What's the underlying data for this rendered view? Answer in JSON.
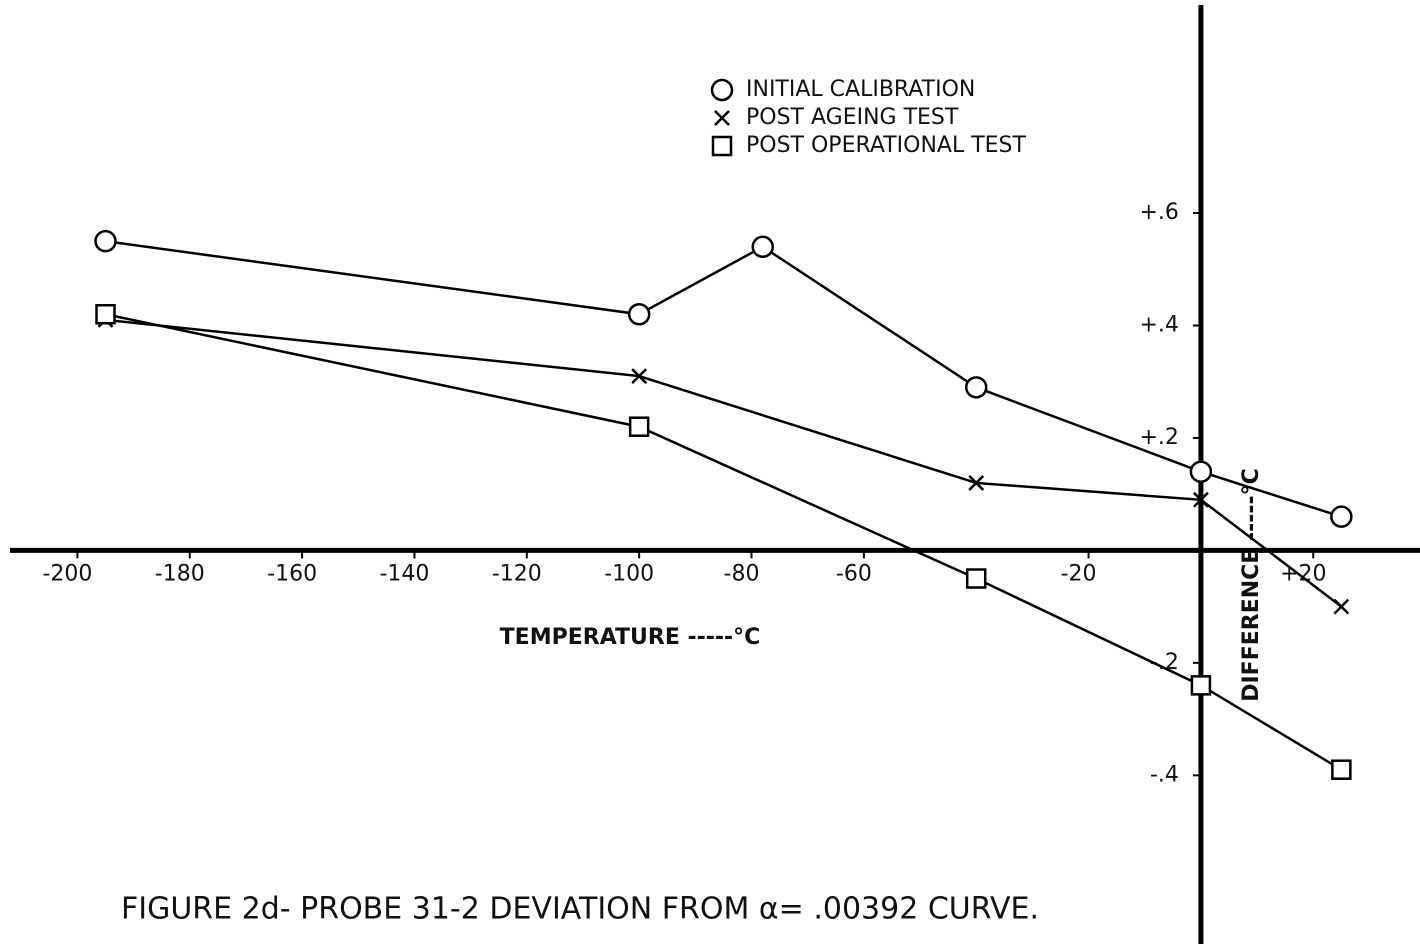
{
  "chart_data": {
    "type": "line",
    "title": "FIGURE 2d- PROBE 31-2 DEVIATION FROM  α= .00392 CURVE.",
    "x_label": "TEMPERATURE -----°C",
    "y_label": "DIFFERENCE -----°C",
    "xlim": [
      -212,
      39
    ],
    "ylim": [
      -0.7,
      0.97
    ],
    "xticks": [
      -200,
      -180,
      -160,
      -140,
      -120,
      -100,
      -80,
      -60,
      -20,
      {
        "value": 20,
        "label": "+20"
      }
    ],
    "yticks": [
      {
        "value": 0.6,
        "label": "+.6"
      },
      {
        "value": 0.4,
        "label": "+.4"
      },
      {
        "value": 0.2,
        "label": "+.2"
      },
      {
        "value": -0.2,
        "label": "-.2"
      },
      {
        "value": -0.4,
        "label": "-.4"
      }
    ],
    "series": [
      {
        "name": "INITIAL CALIBRATION",
        "marker": "circle",
        "color": "#000000",
        "x": [
          -195,
          -100,
          -78,
          -40,
          0,
          25
        ],
        "values": [
          0.55,
          0.42,
          0.54,
          0.29,
          0.14,
          0.06
        ]
      },
      {
        "name": "POST AGEING TEST",
        "marker": "x",
        "color": "#000000",
        "x": [
          -195,
          -100,
          -40,
          0,
          25
        ],
        "values": [
          0.41,
          0.31,
          0.12,
          0.09,
          -0.1
        ]
      },
      {
        "name": "POST OPERATIONAL TEST",
        "marker": "square",
        "color": "#000000",
        "x": [
          -195,
          -100,
          -40,
          0,
          25
        ],
        "values": [
          0.42,
          0.22,
          -0.05,
          -0.24,
          -0.39
        ]
      }
    ]
  }
}
